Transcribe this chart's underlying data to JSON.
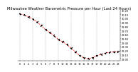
{
  "title": "Milwaukee Weather Barometric Pressure per Hour (Last 24 Hours)",
  "background_color": "#ffffff",
  "plot_bg_color": "#ffffff",
  "grid_color": "#aaaaaa",
  "line_color": "#ff0000",
  "point_color": "#000000",
  "hours": [
    0,
    1,
    2,
    3,
    4,
    5,
    6,
    7,
    8,
    9,
    10,
    11,
    12,
    13,
    14,
    15,
    16,
    17,
    18,
    19,
    20,
    21,
    22,
    23
  ],
  "pressure": [
    30.11,
    30.08,
    30.04,
    29.98,
    29.91,
    29.82,
    29.72,
    29.65,
    29.57,
    29.48,
    29.42,
    29.35,
    29.26,
    29.17,
    29.08,
    29.02,
    29.0,
    29.03,
    29.08,
    29.11,
    29.14,
    29.16,
    29.17,
    29.18
  ],
  "scatter_offsets": [
    [
      [
        -0.2,
        0.012
      ],
      [
        0.2,
        -0.008
      ],
      [
        0.0,
        0.02
      ]
    ],
    [
      [
        -0.15,
        0.015
      ],
      [
        0.15,
        -0.01
      ],
      [
        -0.1,
        0.025
      ]
    ],
    [
      [
        -0.2,
        -0.01
      ],
      [
        0.2,
        0.015
      ],
      [
        0.1,
        -0.02
      ]
    ],
    [
      [
        -0.1,
        0.02
      ],
      [
        0.1,
        -0.015
      ],
      [
        0.2,
        0.01
      ]
    ],
    [
      [
        -0.2,
        0.01
      ],
      [
        0.2,
        0.02
      ],
      [
        -0.1,
        -0.015
      ]
    ],
    [
      [
        -0.15,
        -0.012
      ],
      [
        0.15,
        0.018
      ],
      [
        0.0,
        0.025
      ]
    ],
    [
      [
        -0.2,
        0.015
      ],
      [
        0.2,
        -0.01
      ],
      [
        0.1,
        0.022
      ]
    ],
    [
      [
        -0.1,
        -0.015
      ],
      [
        0.1,
        0.02
      ],
      [
        -0.2,
        0.01
      ]
    ],
    [
      [
        -0.2,
        0.012
      ],
      [
        0.2,
        -0.018
      ],
      [
        0.0,
        0.025
      ]
    ],
    [
      [
        -0.15,
        0.01
      ],
      [
        0.15,
        -0.015
      ],
      [
        0.1,
        0.02
      ]
    ],
    [
      [
        -0.2,
        -0.012
      ],
      [
        0.2,
        0.015
      ],
      [
        -0.1,
        0.02
      ]
    ],
    [
      [
        -0.1,
        0.018
      ],
      [
        0.1,
        -0.012
      ],
      [
        0.2,
        0.022
      ]
    ],
    [
      [
        -0.2,
        0.01
      ],
      [
        0.2,
        0.018
      ],
      [
        0.0,
        -0.015
      ]
    ],
    [
      [
        -0.15,
        -0.01
      ],
      [
        0.15,
        0.02
      ],
      [
        -0.1,
        0.015
      ]
    ],
    [
      [
        -0.2,
        0.015
      ],
      [
        0.2,
        -0.012
      ],
      [
        0.1,
        0.02
      ]
    ],
    [
      [
        -0.1,
        -0.018
      ],
      [
        0.1,
        0.012
      ],
      [
        -0.2,
        0.022
      ]
    ],
    [
      [
        -0.2,
        0.01
      ],
      [
        0.2,
        -0.015
      ],
      [
        0.0,
        0.02
      ]
    ],
    [
      [
        -0.15,
        0.012
      ],
      [
        0.15,
        -0.018
      ],
      [
        0.1,
        0.015
      ]
    ],
    [
      [
        -0.2,
        -0.01
      ],
      [
        0.2,
        0.015
      ],
      [
        -0.1,
        0.02
      ]
    ],
    [
      [
        -0.1,
        0.018
      ],
      [
        0.1,
        -0.01
      ],
      [
        0.2,
        0.015
      ]
    ],
    [
      [
        -0.2,
        0.012
      ],
      [
        0.2,
        0.02
      ],
      [
        0.0,
        -0.012
      ]
    ],
    [
      [
        -0.15,
        -0.015
      ],
      [
        0.15,
        0.018
      ],
      [
        -0.1,
        0.01
      ]
    ],
    [
      [
        -0.2,
        0.015
      ],
      [
        0.2,
        -0.01
      ],
      [
        0.1,
        0.02
      ]
    ],
    [
      [
        -0.1,
        -0.012
      ],
      [
        0.1,
        0.015
      ],
      [
        -0.2,
        0.018
      ]
    ]
  ],
  "ylim_min": 28.95,
  "ylim_max": 30.2,
  "ytick_values": [
    29.0,
    29.1,
    29.2,
    29.3,
    29.4,
    29.5,
    29.6,
    29.7,
    29.8,
    29.9,
    30.0,
    30.1,
    30.2
  ],
  "ytick_labels": [
    "29.00",
    "29.10",
    "29.20",
    "29.30",
    "29.40",
    "29.50",
    "29.60",
    "29.70",
    "29.80",
    "29.90",
    "30.00",
    "30.10",
    "30.20"
  ],
  "xtick_labels": [
    "0",
    "1",
    "2",
    "3",
    "4",
    "5",
    "6",
    "7",
    "8",
    "9",
    "10",
    "11",
    "12",
    "13",
    "14",
    "15",
    "16",
    "17",
    "18",
    "19",
    "20",
    "21",
    "22",
    "23"
  ],
  "title_fontsize": 3.8,
  "tick_fontsize": 2.5,
  "line_width": 0.5,
  "marker_size": 1.5,
  "grid_linewidth": 0.3
}
